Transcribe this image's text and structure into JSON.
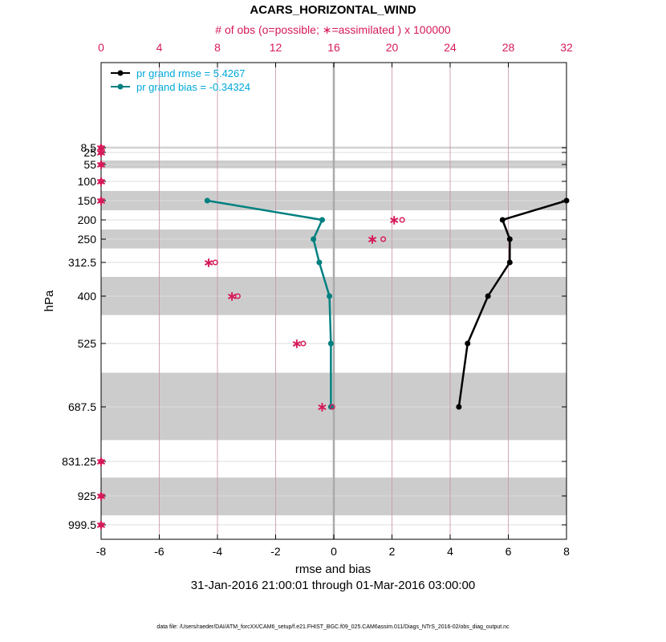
{
  "chart_data": {
    "type": "line",
    "title": "ACARS_HORIZONTAL_WIND",
    "top_axis_label": "# of obs (o=possible; ∗=assimilated ) x 100000",
    "xlabel": "rmse and bias",
    "ylabel": "hPa",
    "date_range": "31-Jan-2016 21:00:01 through 01-Mar-2016 03:00:00",
    "footnote": "data file: /Users/raeder/DAI/ATM_forcXX/CAM6_setup/f.e21.FHIST_BGC.f09_025.CAM6assim.011/Diags_NTrS_2016-02/obs_diag_output.nc",
    "xlim": [
      -8,
      8
    ],
    "x_ticks": [
      "-8",
      "-6",
      "-4",
      "-2",
      "0",
      "2",
      "4",
      "6",
      "8"
    ],
    "top_xlim": [
      0,
      32
    ],
    "top_ticks": [
      "0",
      "4",
      "8",
      "12",
      "16",
      "20",
      "24",
      "28",
      "32"
    ],
    "levels": [
      8.5,
      25,
      55,
      100,
      150,
      200,
      250,
      312.5,
      400,
      525,
      687.5,
      831.25,
      925,
      999.5
    ],
    "level_labels": [
      "8.5",
      "25",
      "55",
      "100",
      "150",
      "200",
      "250",
      "312.5",
      "400",
      "525",
      "687.5",
      "831.25",
      "925",
      "999.5"
    ],
    "level_bands": [
      [
        5,
        12
      ],
      [
        45,
        65
      ],
      [
        125,
        175
      ],
      [
        225,
        275
      ],
      [
        350,
        450
      ],
      [
        600,
        775
      ],
      [
        875,
        975
      ]
    ],
    "series": [
      {
        "name": "pr grand rmse = 5.4267",
        "color": "#000000",
        "points": [
          [
            8.0,
            150
          ],
          [
            5.8,
            200
          ],
          [
            6.05,
            250
          ],
          [
            6.05,
            312.5
          ],
          [
            5.3,
            400
          ],
          [
            4.6,
            525
          ],
          [
            4.3,
            687.5
          ]
        ]
      },
      {
        "name": "pr grand bias = -0.34324",
        "color": "#008080",
        "points": [
          [
            -4.35,
            150
          ],
          [
            -0.4,
            200
          ],
          [
            -0.7,
            250
          ],
          [
            -0.5,
            312.5
          ],
          [
            -0.15,
            400
          ],
          [
            -0.1,
            525
          ],
          [
            -0.1,
            687.5
          ]
        ]
      }
    ],
    "obs_counts": [
      {
        "level": 8.5,
        "possible": 0.0,
        "assimilated": 0.0
      },
      {
        "level": 25,
        "possible": 0.0,
        "assimilated": 0.0
      },
      {
        "level": 55,
        "possible": 0.0,
        "assimilated": 0.0
      },
      {
        "level": 100,
        "possible": 0.0,
        "assimilated": 0.0
      },
      {
        "level": 150,
        "possible": 0.0,
        "assimilated": 0.0
      },
      {
        "level": 200,
        "possible": 20.7,
        "assimilated": 20.15
      },
      {
        "level": 250,
        "possible": 19.4,
        "assimilated": 18.65
      },
      {
        "level": 312.5,
        "possible": 7.85,
        "assimilated": 7.4
      },
      {
        "level": 400,
        "possible": 9.4,
        "assimilated": 9.0
      },
      {
        "level": 525,
        "possible": 13.9,
        "assimilated": 13.45
      },
      {
        "level": 687.5,
        "possible": 15.9,
        "assimilated": 15.2
      },
      {
        "level": 831.25,
        "possible": 0.0,
        "assimilated": 0.0
      },
      {
        "level": 925,
        "possible": 0.0,
        "assimilated": 0.0
      },
      {
        "level": 999.5,
        "possible": 0.0,
        "assimilated": 0.0
      }
    ]
  },
  "colors": {
    "obs": "#d6195a",
    "legend_text": "#00a8d8",
    "band": "#cccccc",
    "vgrid": "#c890a8",
    "hgrid": "#dddddd"
  }
}
